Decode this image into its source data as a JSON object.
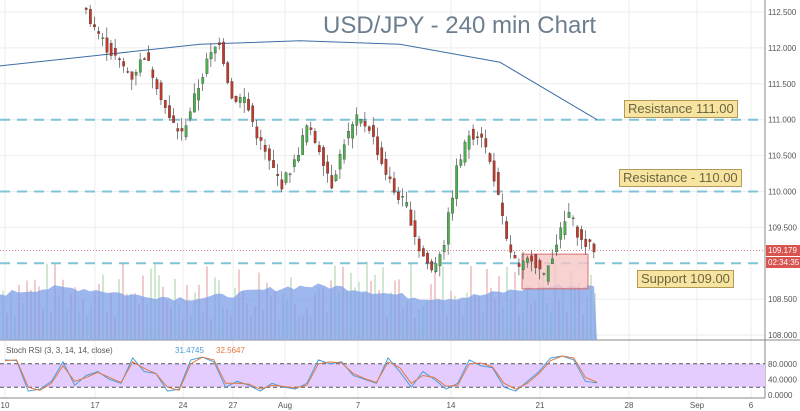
{
  "title": "USD/JPY - 240 min Chart",
  "chart_data": {
    "type": "candlestick",
    "title": "USD/JPY - 240 min Chart",
    "ylim": [
      107.95,
      112.7
    ],
    "y_ticks": [
      "112.500",
      "112.000",
      "111.500",
      "111.000",
      "110.500",
      "110.000",
      "109.500",
      "108.500",
      "108.000"
    ],
    "x_ticks": [
      "10",
      "17",
      "24",
      "27",
      "Aug",
      "7",
      "14",
      "21",
      "28",
      "Sep",
      "6"
    ],
    "approx_closes": [
      112.6,
      112.3,
      112.0,
      111.8,
      111.6,
      111.9,
      111.5,
      111.0,
      110.8,
      111.3,
      111.8,
      112.1,
      111.3,
      111.3,
      110.8,
      110.4,
      110.1,
      110.4,
      110.9,
      110.6,
      110.1,
      110.7,
      111.0,
      110.9,
      110.4,
      110.0,
      109.8,
      109.2,
      108.9,
      109.3,
      110.3,
      110.8,
      110.8,
      110.2,
      109.3,
      108.9,
      109.1,
      108.8,
      109.3,
      109.7,
      109.3,
      109.2
    ],
    "moving_average": [
      111.75,
      111.9,
      112.05,
      112.1,
      112.05,
      111.8,
      111.0
    ],
    "last_price": "109.179",
    "countdown": "02:34:35",
    "levels": [
      {
        "label": "Resistance 111.00",
        "value": 111.0
      },
      {
        "label": "Resistance - 110.00",
        "value": 110.0
      },
      {
        "label": "Support 109.00",
        "value": 109.0
      }
    ],
    "support_zone": [
      108.7,
      109.1
    ],
    "colors": {
      "up": "#4caf50",
      "down": "#c0392b",
      "level": "#7fc4d8",
      "ma": "#3f6ea8",
      "volume": "#7c9fe8",
      "stoch_bg": "#e5ccff"
    },
    "stoch": {
      "label": "Stoch RSI (3, 3, 14, 14, close)",
      "k_value": "31.4745",
      "d_value": "32.5647",
      "y_ticks": [
        "80.0000",
        "40.0000",
        "0.0000"
      ],
      "bands": [
        20,
        80
      ],
      "k": [
        90,
        88,
        10,
        15,
        35,
        85,
        25,
        50,
        60,
        40,
        30,
        95,
        60,
        55,
        10,
        15,
        90,
        97,
        85,
        20,
        35,
        25,
        10,
        30,
        20,
        15,
        30,
        90,
        80,
        85,
        50,
        40,
        30,
        95,
        60,
        20,
        60,
        40,
        15,
        30,
        90,
        75,
        70,
        20,
        10,
        35,
        60,
        95,
        100,
        90,
        35,
        31
      ],
      "d": [
        88,
        90,
        20,
        12,
        30,
        75,
        35,
        45,
        58,
        45,
        32,
        85,
        68,
        55,
        20,
        12,
        80,
        97,
        90,
        30,
        30,
        28,
        15,
        25,
        22,
        18,
        25,
        80,
        85,
        82,
        55,
        42,
        32,
        85,
        70,
        30,
        50,
        45,
        22,
        25,
        80,
        82,
        72,
        30,
        15,
        30,
        55,
        88,
        100,
        95,
        45,
        33
      ]
    }
  }
}
